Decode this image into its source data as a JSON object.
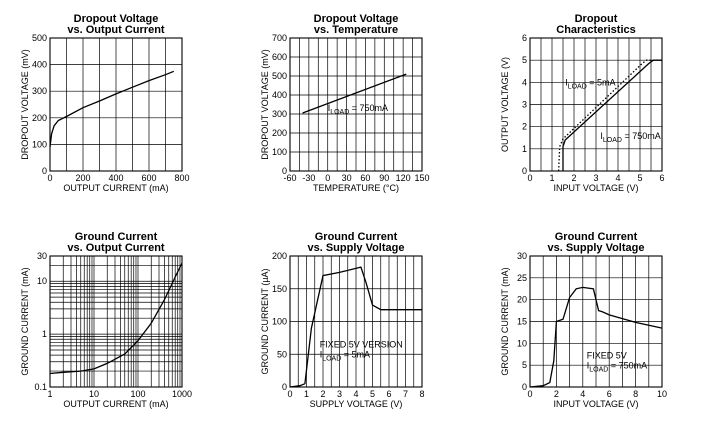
{
  "chart_data": [
    {
      "type": "line",
      "title": [
        "Dropout Voltage",
        "vs. Output Current"
      ],
      "xlabel": "OUTPUT CURRENT (mA)",
      "ylabel": "DROPOUT VOLTAGE (mV)",
      "xlim": [
        0,
        800
      ],
      "ylim": [
        0,
        500
      ],
      "xticks": [
        0,
        200,
        400,
        600,
        800
      ],
      "yticks": [
        0,
        100,
        200,
        300,
        400,
        500
      ],
      "xtick_labels": [
        "0",
        "200",
        "400",
        "600",
        "800"
      ],
      "ytick_labels": [
        "0",
        "100",
        "200",
        "300",
        "400",
        "500"
      ],
      "xscale": "linear",
      "yscale": "linear",
      "grid": true,
      "series": [
        {
          "x": [
            0,
            10,
            25,
            50,
            100,
            200,
            300,
            400,
            500,
            600,
            700,
            750
          ],
          "y": [
            90,
            140,
            170,
            190,
            205,
            238,
            263,
            290,
            315,
            340,
            362,
            375
          ],
          "style": "solid"
        }
      ],
      "annotations": []
    },
    {
      "type": "line",
      "title": [
        "Dropout Voltage",
        "vs. Temperature"
      ],
      "xlabel": "TEMPERATURE (°C)",
      "ylabel": "DROPOUT VOLTAGE (mV)",
      "xlim": [
        -60,
        150
      ],
      "ylim": [
        0,
        700
      ],
      "xticks": [
        -60,
        -30,
        0,
        30,
        60,
        90,
        120,
        150
      ],
      "yticks": [
        0,
        100,
        200,
        300,
        400,
        500,
        600,
        700
      ],
      "xtick_labels": [
        "-60",
        "-30",
        "0",
        "30",
        "60",
        "90",
        "120",
        "150"
      ],
      "ytick_labels": [
        "0",
        "100",
        "200",
        "300",
        "400",
        "500",
        "600",
        "700"
      ],
      "xscale": "linear",
      "yscale": "linear",
      "grid": true,
      "series": [
        {
          "x": [
            -40,
            125
          ],
          "y": [
            305,
            510
          ],
          "style": "solid"
        }
      ],
      "annotations": [
        {
          "main": "I",
          "sub": "LOAD",
          "rest": " = 750mA",
          "x": 0,
          "y": 315
        }
      ]
    },
    {
      "type": "line",
      "title": [
        "Dropout",
        "Characteristics"
      ],
      "xlabel": "INPUT VOLTAGE (V)",
      "ylabel": "OUTPUT VOLTAGE (V)",
      "xlim": [
        0,
        6
      ],
      "ylim": [
        0,
        6
      ],
      "xticks": [
        0,
        1,
        2,
        3,
        4,
        5,
        6
      ],
      "yticks": [
        0,
        1,
        2,
        3,
        4,
        5,
        6
      ],
      "xtick_labels": [
        "0",
        "1",
        "2",
        "3",
        "4",
        "5",
        "6"
      ],
      "ytick_labels": [
        "0",
        "1",
        "2",
        "3",
        "4",
        "5",
        "6"
      ],
      "xscale": "linear",
      "yscale": "linear",
      "grid": true,
      "series": [
        {
          "x": [
            1.5,
            1.5,
            1.6,
            5.4,
            5.6,
            6.0
          ],
          "y": [
            0,
            1.1,
            1.4,
            4.85,
            5.0,
            5.0
          ],
          "style": "solid"
        },
        {
          "x": [
            1.3,
            1.35,
            1.5,
            5.1,
            5.3,
            6.0
          ],
          "y": [
            0,
            1.1,
            1.45,
            4.85,
            5.0,
            5.0
          ],
          "style": "dotted"
        }
      ],
      "annotations": [
        {
          "main": "I",
          "sub": "LOAD",
          "rest": " = 5mA",
          "x": 1.6,
          "y": 3.85
        },
        {
          "main": "I",
          "sub": "LOAD",
          "rest": " = 750mA",
          "x": 3.2,
          "y": 1.45
        }
      ]
    },
    {
      "type": "line",
      "title": [
        "Ground Current",
        "vs. Output Current"
      ],
      "xlabel": "OUTPUT CURRENT (mA)",
      "ylabel": "GROUND CURRENT (mA)",
      "xlim": [
        1,
        1000
      ],
      "ylim": [
        0.1,
        30
      ],
      "xticks": [
        1,
        10,
        100,
        1000
      ],
      "yticks": [
        0.1,
        1,
        10,
        30
      ],
      "xtick_labels": [
        "1",
        "10",
        "100",
        "1000"
      ],
      "ytick_labels": [
        "0.1",
        "1",
        "10",
        "30"
      ],
      "xscale": "log",
      "yscale": "log",
      "grid": true,
      "series": [
        {
          "x": [
            1,
            2,
            5,
            10,
            20,
            50,
            100,
            200,
            400,
            700,
            1000
          ],
          "y": [
            0.18,
            0.19,
            0.2,
            0.22,
            0.28,
            0.42,
            0.75,
            1.6,
            4.5,
            12,
            22
          ],
          "style": "solid"
        }
      ],
      "annotations": []
    },
    {
      "type": "line",
      "title": [
        "Ground Current",
        "vs. Supply Voltage"
      ],
      "xlabel": "SUPPLY VOLTAGE (V)",
      "ylabel": "GROUND CURRENT (µA)",
      "xlim": [
        0,
        8
      ],
      "ylim": [
        0,
        200
      ],
      "xticks": [
        0,
        1,
        2,
        3,
        4,
        5,
        6,
        7,
        8
      ],
      "yticks": [
        0,
        50,
        100,
        150,
        200
      ],
      "xtick_labels": [
        "0",
        "1",
        "2",
        "3",
        "4",
        "5",
        "6",
        "7",
        "8"
      ],
      "ytick_labels": [
        "0",
        "50",
        "100",
        "150",
        "200"
      ],
      "xscale": "linear",
      "yscale": "linear",
      "grid": true,
      "series": [
        {
          "x": [
            0,
            0.6,
            0.9,
            1.3,
            2.0,
            3.0,
            4.3,
            4.6,
            5.0,
            5.5,
            8.0
          ],
          "y": [
            0,
            2,
            5,
            90,
            170,
            175,
            183,
            160,
            125,
            118,
            118
          ],
          "style": "solid"
        }
      ],
      "annotations": [
        {
          "text": "FIXED 5V VERSION",
          "x": 1.8,
          "y": 60
        },
        {
          "main": "I",
          "sub": "LOAD",
          "rest": " = 5mA",
          "x": 1.8,
          "y": 45
        }
      ]
    },
    {
      "type": "line",
      "title": [
        "Ground Current",
        "vs. Supply Voltage"
      ],
      "xlabel": "INPUT VOLTAGE (V)",
      "ylabel": "GROUND CURRENT (mA)",
      "xlim": [
        0,
        10
      ],
      "ylim": [
        0,
        30
      ],
      "xticks": [
        0,
        2,
        4,
        6,
        8,
        10
      ],
      "yticks": [
        0,
        5,
        10,
        15,
        20,
        25,
        30
      ],
      "xtick_labels": [
        "0",
        "2",
        "4",
        "6",
        "8",
        "10"
      ],
      "ytick_labels": [
        "0",
        "5",
        "10",
        "15",
        "20",
        "25",
        "30"
      ],
      "xscale": "linear",
      "yscale": "linear",
      "grid": true,
      "series": [
        {
          "x": [
            0,
            1,
            1.5,
            1.8,
            2.0,
            2.5,
            3.0,
            3.5,
            4.0,
            4.8,
            5.2,
            5.5,
            6.0,
            8.0,
            10.0
          ],
          "y": [
            0,
            0.3,
            1,
            6,
            15,
            15.5,
            20.5,
            22.5,
            22.8,
            22.5,
            17.5,
            17.2,
            16.5,
            14.8,
            13.5
          ],
          "style": "solid"
        }
      ],
      "annotations": [
        {
          "text": "FIXED 5V",
          "x": 4.3,
          "y": 6.5
        },
        {
          "main": "I",
          "sub": "LOAD",
          "rest": " = 750mA",
          "x": 4.3,
          "y": 4.2
        }
      ]
    }
  ]
}
